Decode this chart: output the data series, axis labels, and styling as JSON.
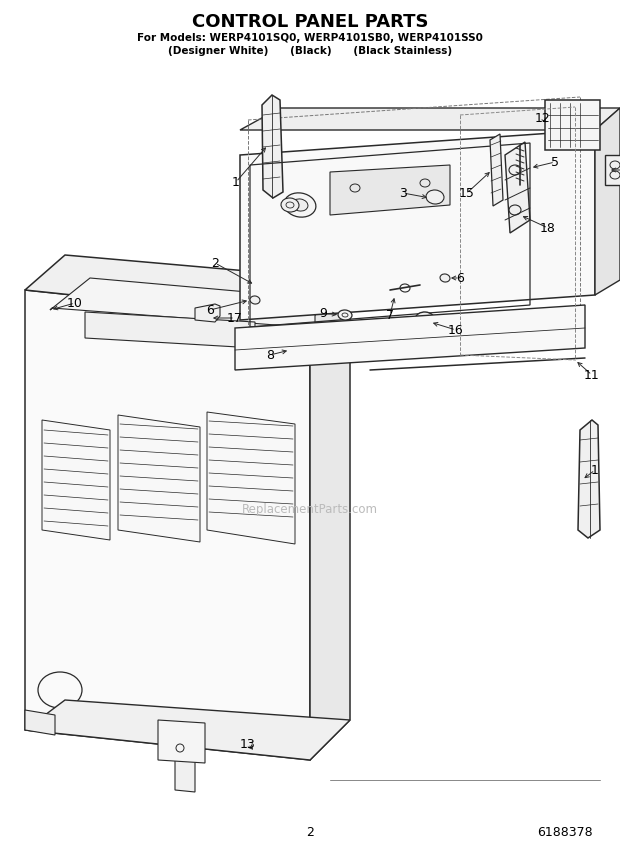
{
  "title": "CONTROL PANEL PARTS",
  "subtitle_line1": "For Models: WERP4101SQ0, WERP4101SB0, WERP4101SS0",
  "subtitle_line2": "(Designer White)      (Black)      (Black Stainless)",
  "page_number": "2",
  "part_number": "6188378",
  "watermark": "ReplacementParts.com",
  "background_color": "#ffffff",
  "line_color": "#2a2a2a",
  "figwidth": 6.2,
  "figheight": 8.56,
  "title_fontsize": 13,
  "subtitle_fontsize": 7.5,
  "footer_fontsize": 9
}
